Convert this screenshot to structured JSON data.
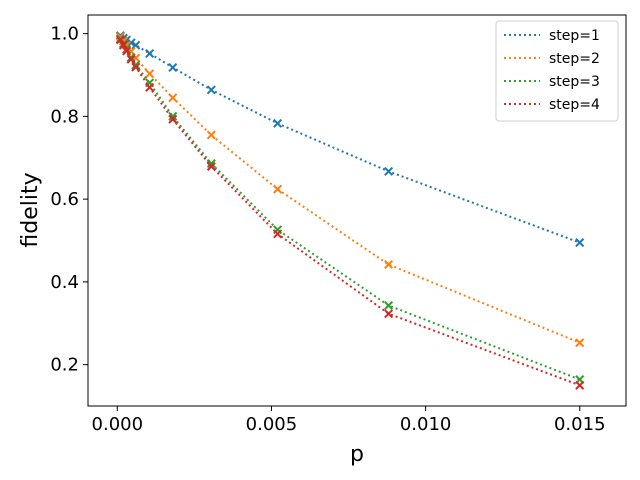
{
  "chart_data": {
    "type": "line",
    "title": "",
    "xlabel": "p",
    "ylabel": "fidelity",
    "xlim": [
      -0.00095,
      0.0165
    ],
    "ylim": [
      0.1,
      1.045
    ],
    "xticks": [
      0.0,
      0.005,
      0.01,
      0.015
    ],
    "xtick_labels": [
      "0.000",
      "0.005",
      "0.010",
      "0.015"
    ],
    "yticks": [
      0.2,
      0.4,
      0.6,
      0.8,
      1.0
    ],
    "ytick_labels": [
      "0.2",
      "0.4",
      "0.6",
      "0.8",
      "1.0"
    ],
    "grid": false,
    "legend_position": "upper-right",
    "x": [
      0.0001,
      0.0002,
      0.0003,
      0.00045,
      0.0006,
      0.00105,
      0.0018,
      0.00305,
      0.0052,
      0.0088,
      0.015
    ],
    "series": [
      {
        "name": "step=1",
        "color": "#1f77b4",
        "values": [
          0.995,
          0.989,
          0.985,
          0.978,
          0.972,
          0.952,
          0.918,
          0.864,
          0.783,
          0.667,
          0.495
        ]
      },
      {
        "name": "step=2",
        "color": "#ff7f0e",
        "values": [
          0.992,
          0.982,
          0.972,
          0.957,
          0.941,
          0.903,
          0.845,
          0.755,
          0.624,
          0.442,
          0.253
        ]
      },
      {
        "name": "step=3",
        "color": "#2ca02c",
        "values": [
          0.987,
          0.975,
          0.962,
          0.942,
          0.924,
          0.881,
          0.8,
          0.686,
          0.526,
          0.343,
          0.164
        ]
      },
      {
        "name": "step=4",
        "color": "#d62728",
        "values": [
          0.985,
          0.972,
          0.958,
          0.938,
          0.919,
          0.87,
          0.793,
          0.679,
          0.516,
          0.323,
          0.15
        ]
      }
    ]
  }
}
